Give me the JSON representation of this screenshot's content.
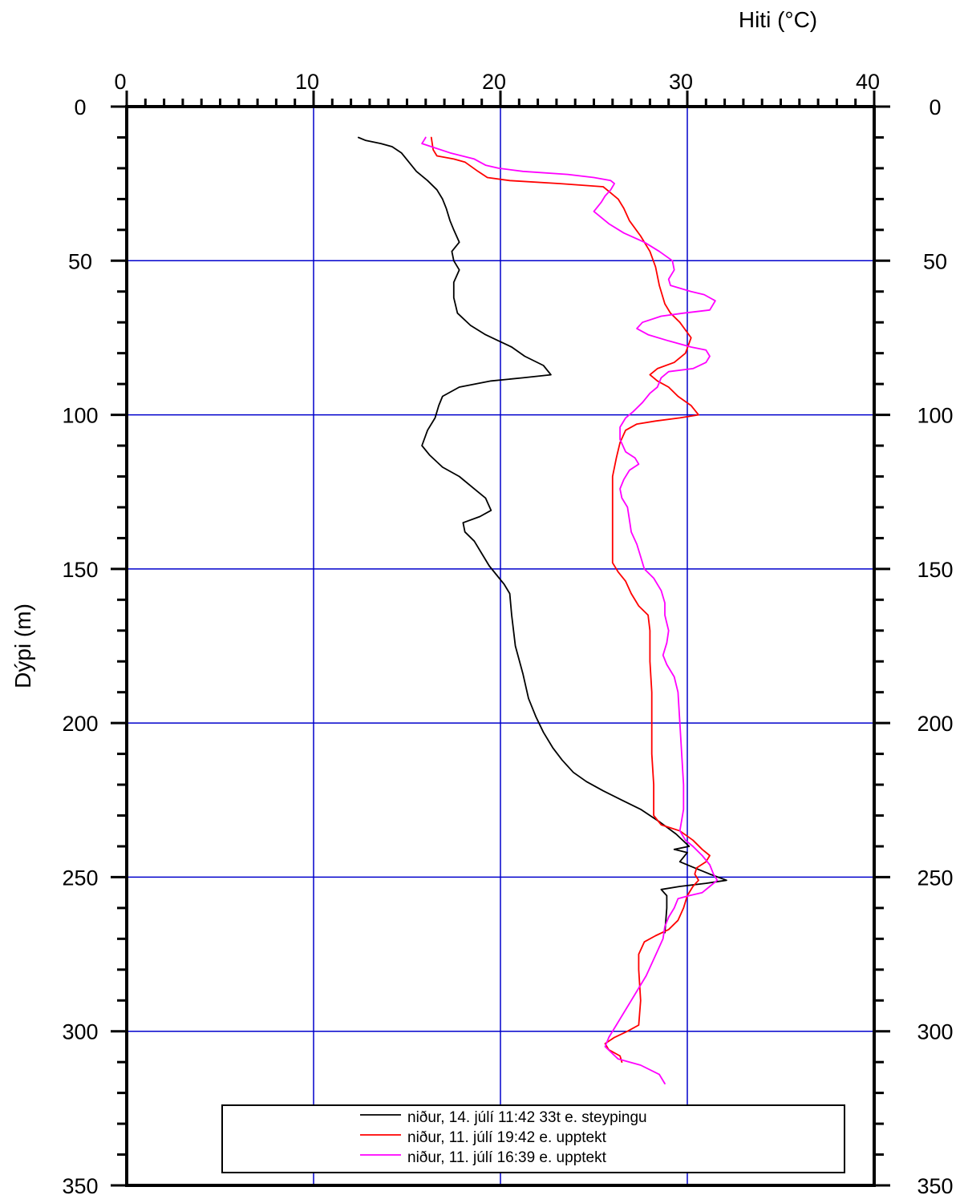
{
  "chart_data": {
    "type": "line",
    "title": "",
    "xlabel": "Hiti (°C)",
    "ylabel": "Dýpi (m)",
    "xlim": [
      0,
      40
    ],
    "ylim": [
      0,
      350
    ],
    "y_inverted": true,
    "x_ticks": [
      "0",
      "10",
      "20",
      "30",
      "40"
    ],
    "y_ticks": [
      "0",
      "50",
      "100",
      "150",
      "200",
      "250",
      "300",
      "350"
    ],
    "grid": true,
    "grid_color": "#0000cc",
    "legend_position": "bottom-center",
    "series": [
      {
        "name": "niður, 14. júlí 11:42 33t e. steypingu",
        "color": "#000000",
        "points": [
          [
            12.4,
            10
          ],
          [
            12.8,
            11
          ],
          [
            13.6,
            12
          ],
          [
            14.2,
            13
          ],
          [
            14.7,
            15
          ],
          [
            15.1,
            18
          ],
          [
            15.5,
            21
          ],
          [
            16.1,
            24
          ],
          [
            16.6,
            27
          ],
          [
            16.9,
            30
          ],
          [
            17.1,
            33
          ],
          [
            17.3,
            37
          ],
          [
            17.5,
            40
          ],
          [
            17.8,
            44
          ],
          [
            17.4,
            47
          ],
          [
            17.5,
            50
          ],
          [
            17.8,
            53
          ],
          [
            17.5,
            57
          ],
          [
            17.5,
            62
          ],
          [
            17.7,
            67
          ],
          [
            18.4,
            71
          ],
          [
            19.2,
            74
          ],
          [
            19.9,
            76
          ],
          [
            20.6,
            78
          ],
          [
            21.3,
            81
          ],
          [
            22.3,
            84
          ],
          [
            22.7,
            87
          ],
          [
            21.2,
            88
          ],
          [
            19.5,
            89
          ],
          [
            17.8,
            91
          ],
          [
            16.9,
            94
          ],
          [
            16.7,
            97
          ],
          [
            16.5,
            101
          ],
          [
            16.1,
            105
          ],
          [
            15.8,
            110
          ],
          [
            16.2,
            113
          ],
          [
            16.9,
            117
          ],
          [
            17.8,
            120
          ],
          [
            18.6,
            124
          ],
          [
            19.2,
            127
          ],
          [
            19.5,
            131
          ],
          [
            18.9,
            133
          ],
          [
            18.0,
            135
          ],
          [
            18.1,
            138
          ],
          [
            18.6,
            141
          ],
          [
            19.0,
            145
          ],
          [
            19.4,
            149
          ],
          [
            19.8,
            152
          ],
          [
            20.2,
            155
          ],
          [
            20.5,
            158
          ],
          [
            20.6,
            165
          ],
          [
            20.8,
            175
          ],
          [
            21.2,
            184
          ],
          [
            21.5,
            192
          ],
          [
            21.9,
            198
          ],
          [
            22.3,
            203
          ],
          [
            22.8,
            208
          ],
          [
            23.3,
            212
          ],
          [
            23.9,
            216
          ],
          [
            24.6,
            219
          ],
          [
            25.5,
            222
          ],
          [
            26.5,
            225
          ],
          [
            27.5,
            228
          ],
          [
            28.5,
            232
          ],
          [
            29.4,
            236
          ],
          [
            30.1,
            240
          ],
          [
            29.3,
            241
          ],
          [
            30.0,
            242
          ],
          [
            29.6,
            245
          ],
          [
            30.4,
            247
          ],
          [
            31.2,
            249
          ],
          [
            32.1,
            251
          ],
          [
            31.0,
            252
          ],
          [
            29.6,
            253
          ],
          [
            28.6,
            254
          ],
          [
            28.9,
            256
          ],
          [
            28.9,
            260
          ],
          [
            28.8,
            268
          ]
        ]
      },
      {
        "name": "niður, 11. júlí 19:42 e. upptekt",
        "color": "#ff0000",
        "points": [
          [
            16.3,
            10
          ],
          [
            16.4,
            14
          ],
          [
            16.6,
            16
          ],
          [
            17.5,
            17
          ],
          [
            18.1,
            18
          ],
          [
            18.8,
            21
          ],
          [
            19.3,
            23
          ],
          [
            20.5,
            24
          ],
          [
            23.2,
            25
          ],
          [
            25.5,
            26
          ],
          [
            25.9,
            28
          ],
          [
            26.3,
            30
          ],
          [
            26.6,
            33
          ],
          [
            26.9,
            37
          ],
          [
            27.5,
            42
          ],
          [
            28.0,
            47
          ],
          [
            28.3,
            52
          ],
          [
            28.5,
            58
          ],
          [
            28.8,
            64
          ],
          [
            29.1,
            67
          ],
          [
            29.6,
            70
          ],
          [
            30.2,
            75
          ],
          [
            29.9,
            80
          ],
          [
            29.3,
            83
          ],
          [
            28.4,
            85
          ],
          [
            28.0,
            87
          ],
          [
            28.4,
            89
          ],
          [
            29.0,
            91
          ],
          [
            29.5,
            94
          ],
          [
            30.2,
            97
          ],
          [
            30.6,
            100
          ],
          [
            29.6,
            101
          ],
          [
            28.3,
            102
          ],
          [
            27.3,
            103
          ],
          [
            26.7,
            105
          ],
          [
            26.4,
            109
          ],
          [
            26.2,
            114
          ],
          [
            26.0,
            120
          ],
          [
            26.0,
            130
          ],
          [
            26.0,
            140
          ],
          [
            26.0,
            148
          ],
          [
            26.3,
            151
          ],
          [
            26.7,
            154
          ],
          [
            27.0,
            158
          ],
          [
            27.4,
            162
          ],
          [
            27.9,
            165
          ],
          [
            28.0,
            170
          ],
          [
            28.0,
            180
          ],
          [
            28.1,
            190
          ],
          [
            28.1,
            200
          ],
          [
            28.1,
            210
          ],
          [
            28.2,
            220
          ],
          [
            28.2,
            230
          ],
          [
            28.6,
            233
          ],
          [
            29.6,
            235
          ],
          [
            30.3,
            238
          ],
          [
            30.8,
            241
          ],
          [
            31.2,
            243
          ],
          [
            31.0,
            245
          ],
          [
            30.5,
            247
          ],
          [
            30.4,
            249
          ],
          [
            30.6,
            251
          ],
          [
            30.3,
            253
          ],
          [
            30.0,
            256
          ],
          [
            29.8,
            260
          ],
          [
            29.5,
            264
          ],
          [
            29.0,
            267
          ],
          [
            28.3,
            269
          ],
          [
            27.7,
            271
          ],
          [
            27.4,
            275
          ],
          [
            27.4,
            280
          ],
          [
            27.5,
            290
          ],
          [
            27.4,
            298
          ],
          [
            26.8,
            300
          ],
          [
            26.1,
            302
          ],
          [
            25.6,
            304
          ],
          [
            25.8,
            306
          ],
          [
            26.4,
            308
          ],
          [
            26.5,
            310
          ]
        ]
      },
      {
        "name": "niður, 11. júlí 16:39 e. upptekt",
        "color": "#ff00ff",
        "points": [
          [
            16.0,
            10
          ],
          [
            15.9,
            11
          ],
          [
            15.8,
            12
          ],
          [
            16.3,
            13
          ],
          [
            17.3,
            15
          ],
          [
            18.6,
            17
          ],
          [
            19.2,
            19
          ],
          [
            19.9,
            20
          ],
          [
            21.2,
            21
          ],
          [
            23.6,
            22
          ],
          [
            25.0,
            23
          ],
          [
            25.9,
            24
          ],
          [
            26.1,
            25
          ],
          [
            25.9,
            27
          ],
          [
            25.6,
            29
          ],
          [
            25.4,
            31
          ],
          [
            25.0,
            34
          ],
          [
            25.4,
            36
          ],
          [
            25.8,
            38
          ],
          [
            26.6,
            41
          ],
          [
            27.7,
            44
          ],
          [
            28.5,
            47
          ],
          [
            29.2,
            50
          ],
          [
            29.3,
            53
          ],
          [
            29.0,
            56
          ],
          [
            29.1,
            58
          ],
          [
            30.2,
            60
          ],
          [
            30.9,
            61
          ],
          [
            31.5,
            63
          ],
          [
            31.2,
            66
          ],
          [
            29.8,
            67
          ],
          [
            28.6,
            68
          ],
          [
            27.6,
            70
          ],
          [
            27.3,
            72
          ],
          [
            27.9,
            74
          ],
          [
            29.0,
            76
          ],
          [
            30.2,
            78
          ],
          [
            31.0,
            79
          ],
          [
            31.2,
            81
          ],
          [
            31.0,
            83
          ],
          [
            30.3,
            85
          ],
          [
            29.0,
            86
          ],
          [
            28.6,
            88
          ],
          [
            28.4,
            91
          ],
          [
            28.0,
            93
          ],
          [
            27.6,
            96
          ],
          [
            27.1,
            99
          ],
          [
            26.7,
            101
          ],
          [
            26.4,
            104
          ],
          [
            26.4,
            108
          ],
          [
            26.7,
            112
          ],
          [
            27.2,
            114
          ],
          [
            27.4,
            116
          ],
          [
            26.9,
            118
          ],
          [
            26.6,
            121
          ],
          [
            26.4,
            124
          ],
          [
            26.5,
            127
          ],
          [
            26.8,
            130
          ],
          [
            26.9,
            134
          ],
          [
            27.0,
            138
          ],
          [
            27.3,
            142
          ],
          [
            27.5,
            146
          ],
          [
            27.7,
            150
          ],
          [
            28.2,
            153
          ],
          [
            28.6,
            157
          ],
          [
            28.8,
            161
          ],
          [
            28.8,
            165
          ],
          [
            29.0,
            170
          ],
          [
            28.9,
            174
          ],
          [
            28.7,
            178
          ],
          [
            28.9,
            181
          ],
          [
            29.3,
            185
          ],
          [
            29.5,
            190
          ],
          [
            29.6,
            200
          ],
          [
            29.7,
            210
          ],
          [
            29.8,
            220
          ],
          [
            29.8,
            228
          ],
          [
            29.6,
            235
          ],
          [
            29.9,
            238
          ],
          [
            30.3,
            240
          ],
          [
            30.8,
            243
          ],
          [
            31.2,
            246
          ],
          [
            31.4,
            249
          ],
          [
            31.6,
            251
          ],
          [
            31.2,
            253
          ],
          [
            30.8,
            255
          ],
          [
            30.1,
            256
          ],
          [
            29.5,
            257
          ],
          [
            29.3,
            260
          ],
          [
            29.0,
            263
          ],
          [
            28.8,
            266
          ],
          [
            28.7,
            270
          ],
          [
            28.4,
            274
          ],
          [
            28.1,
            278
          ],
          [
            27.8,
            282
          ],
          [
            27.4,
            286
          ],
          [
            27.0,
            290
          ],
          [
            26.6,
            294
          ],
          [
            26.2,
            298
          ],
          [
            25.8,
            302
          ],
          [
            25.6,
            305
          ],
          [
            26.3,
            309
          ],
          [
            27.5,
            311
          ],
          [
            28.5,
            314
          ],
          [
            28.8,
            317
          ]
        ]
      }
    ]
  }
}
